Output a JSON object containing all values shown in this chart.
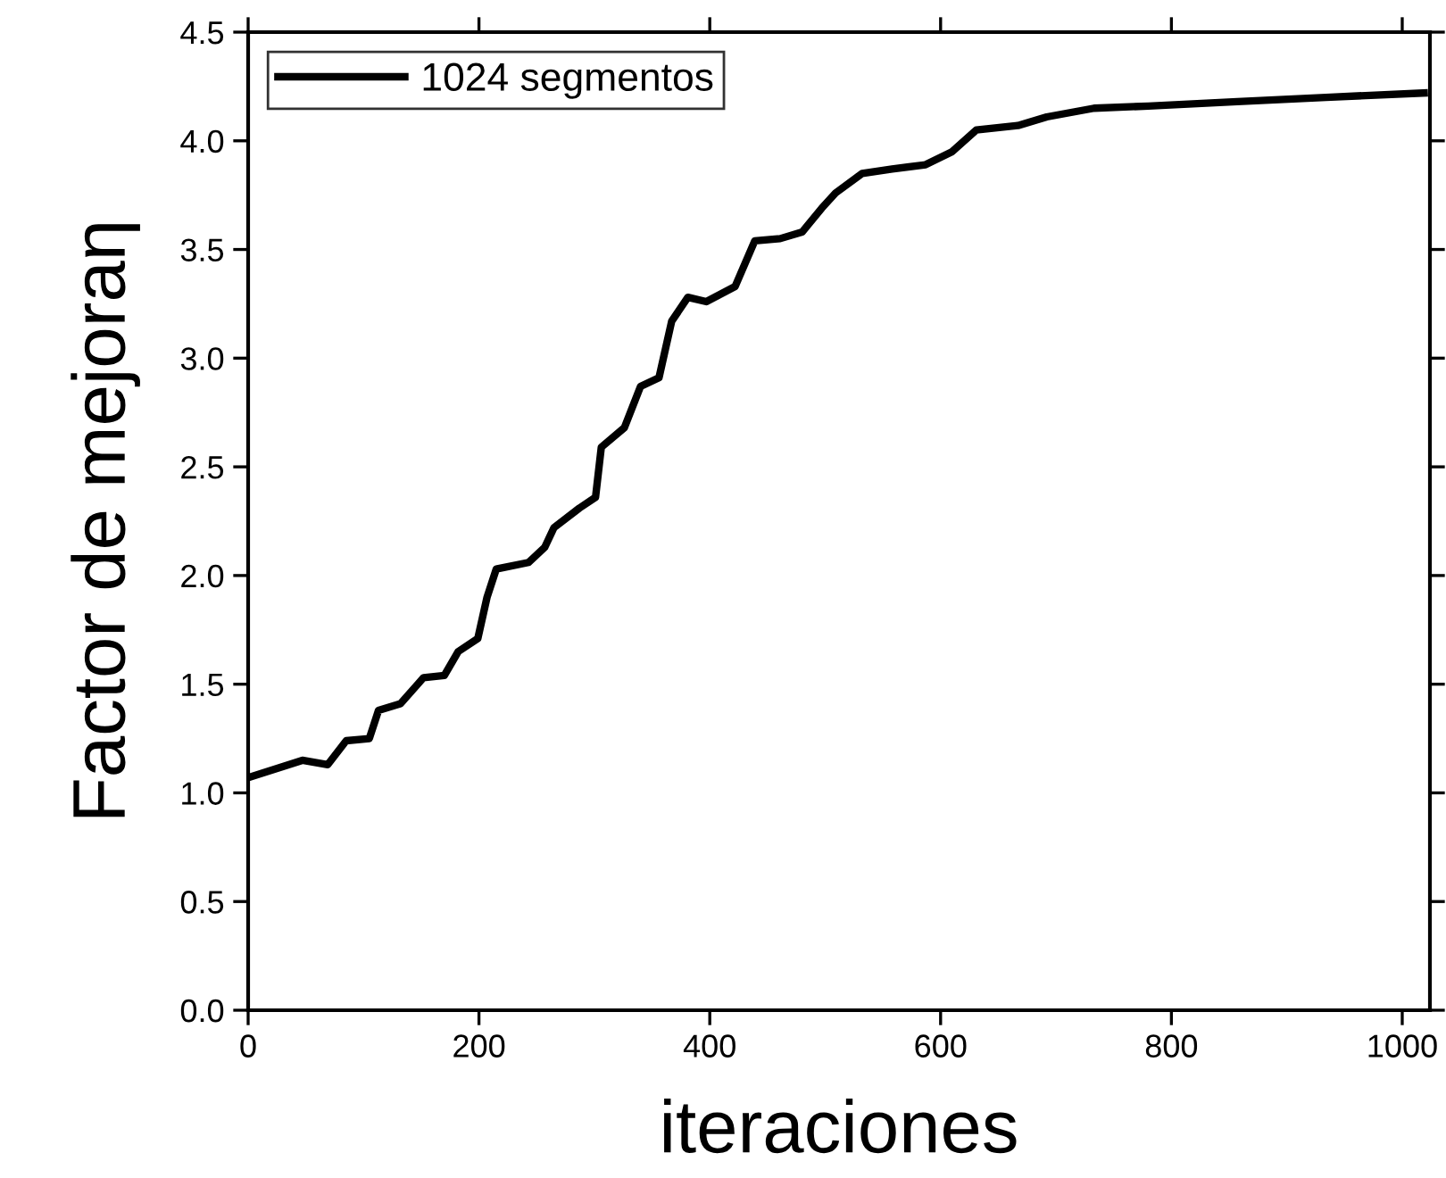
{
  "chart_data": {
    "type": "line",
    "xlabel": "iteraciones",
    "ylabel": "Factor de mejoraη",
    "xlim": [
      0,
      1024
    ],
    "xticks": [
      0,
      200,
      400,
      600,
      800,
      1000
    ],
    "ylim": [
      0.0,
      4.5
    ],
    "yticks": [
      {
        "value": 0.0,
        "label": "0.0"
      },
      {
        "value": 0.5,
        "label": "0.5"
      },
      {
        "value": 1.0,
        "label": "1.0"
      },
      {
        "value": 1.5,
        "label": "1.5"
      },
      {
        "value": 2.0,
        "label": "2.0"
      },
      {
        "value": 2.5,
        "label": "2.5"
      },
      {
        "value": 3.0,
        "label": "3.0"
      },
      {
        "value": 3.5,
        "label": "3.5"
      },
      {
        "value": 4.0,
        "label": "4.0"
      },
      {
        "value": 4.5,
        "label": "4.5"
      }
    ],
    "grid": false,
    "legend": "top left",
    "marker": "none",
    "line_style": "solid",
    "series": [
      {
        "name": "1024 segmentos",
        "color": "#000000",
        "x": [
          0,
          47,
          69,
          85,
          105,
          113,
          132,
          152,
          170,
          182,
          199,
          207,
          215,
          243,
          257,
          265,
          287,
          301,
          306,
          326,
          340,
          356,
          367,
          381,
          397,
          422,
          439,
          461,
          480,
          497,
          509,
          532,
          558,
          587,
          610,
          631,
          667,
          692,
          733,
          780,
          857,
          934,
          1019
        ],
        "values": [
          1.07,
          1.15,
          1.13,
          1.24,
          1.25,
          1.38,
          1.41,
          1.53,
          1.54,
          1.65,
          1.71,
          1.9,
          2.03,
          2.06,
          2.13,
          2.22,
          2.31,
          2.36,
          2.59,
          2.68,
          2.87,
          2.91,
          3.17,
          3.28,
          3.26,
          3.33,
          3.54,
          3.55,
          3.58,
          3.69,
          3.76,
          3.85,
          3.87,
          3.89,
          3.95,
          4.05,
          4.07,
          4.11,
          4.15,
          4.16,
          4.18,
          4.2,
          4.22
        ]
      }
    ]
  }
}
